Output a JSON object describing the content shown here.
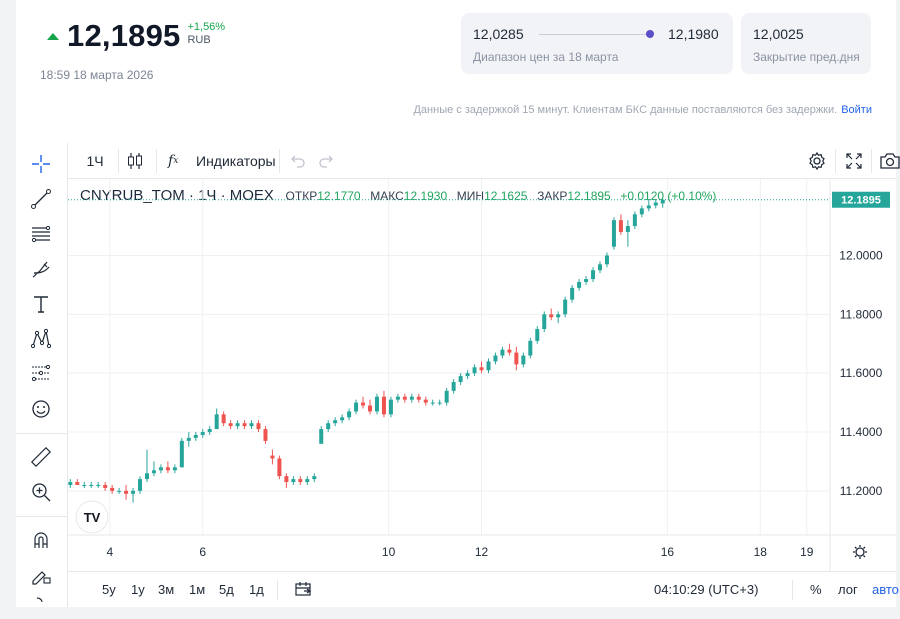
{
  "quote": {
    "price": "12,1895",
    "change_pct": "+1,56%",
    "currency": "RUB",
    "timestamp": "18:59 18 марта 2026"
  },
  "range_card": {
    "low": "12,0285",
    "high": "12,1980",
    "label": "Диапазон цен за 18 марта"
  },
  "prev_close_card": {
    "value": "12,0025",
    "label": "Закрытие пред.дня"
  },
  "delay_notice": {
    "text": "Данные с задержкой 15 минут. Клиентам БКС данные поставляются без задержки.",
    "login_link": "Войти"
  },
  "toolbar": {
    "interval": "1Ч",
    "indicators_label": "Индикаторы"
  },
  "legend": {
    "symbol": "CNYRUB_TOM · 1Ч · MOEX",
    "open_label": "ОТКР",
    "open": "12.1770",
    "high_label": "МАКС",
    "high": "12.1930",
    "low_label": "МИН",
    "low": "12.1625",
    "close_label": "ЗАКР",
    "close": "12.1895",
    "change": "+0.0120 (+0.10%)"
  },
  "bottom": {
    "ranges": [
      "5у",
      "1у",
      "3м",
      "1м",
      "5д",
      "1д"
    ],
    "time": "04:10:29 (UTC+3)",
    "percent": "%",
    "log": "лог",
    "auto": "авто"
  },
  "chart_data": {
    "type": "candlestick",
    "last_price_label": "12.1895",
    "y_ticks": [
      "12.0000",
      "11.8000",
      "11.6000",
      "11.4000",
      "11.2000"
    ],
    "y_tick_values": [
      12.0,
      11.8,
      11.6,
      11.4,
      11.2
    ],
    "ylim": [
      11.05,
      12.26
    ],
    "x_ticks": [
      "4",
      "6",
      "10",
      "12",
      "16",
      "18",
      "19"
    ],
    "x_tick_values": [
      4,
      6,
      10,
      12,
      16,
      18,
      19
    ],
    "xlim": [
      3.1,
      19.5
    ],
    "colors": {
      "up": "#26a69a",
      "down": "#ef5350",
      "last_price": "#26a69a"
    },
    "candles": [
      {
        "t": 3.15,
        "o": 11.22,
        "h": 11.24,
        "l": 11.21,
        "c": 11.23
      },
      {
        "t": 3.3,
        "o": 11.23,
        "h": 11.24,
        "l": 11.22,
        "c": 11.22
      },
      {
        "t": 3.45,
        "o": 11.22,
        "h": 11.23,
        "l": 11.21,
        "c": 11.22
      },
      {
        "t": 3.6,
        "o": 11.22,
        "h": 11.23,
        "l": 11.21,
        "c": 11.22
      },
      {
        "t": 3.75,
        "o": 11.22,
        "h": 11.23,
        "l": 11.21,
        "c": 11.22
      },
      {
        "t": 3.9,
        "o": 11.22,
        "h": 11.23,
        "l": 11.2,
        "c": 11.21
      },
      {
        "t": 4.05,
        "o": 11.21,
        "h": 11.22,
        "l": 11.19,
        "c": 11.2
      },
      {
        "t": 4.2,
        "o": 11.2,
        "h": 11.21,
        "l": 11.19,
        "c": 11.2
      },
      {
        "t": 4.35,
        "o": 11.2,
        "h": 11.22,
        "l": 11.17,
        "c": 11.19
      },
      {
        "t": 4.5,
        "o": 11.19,
        "h": 11.21,
        "l": 11.16,
        "c": 11.2
      },
      {
        "t": 4.65,
        "o": 11.2,
        "h": 11.25,
        "l": 11.19,
        "c": 11.24
      },
      {
        "t": 4.8,
        "o": 11.24,
        "h": 11.34,
        "l": 11.23,
        "c": 11.26
      },
      {
        "t": 4.95,
        "o": 11.26,
        "h": 11.3,
        "l": 11.25,
        "c": 11.27
      },
      {
        "t": 5.1,
        "o": 11.27,
        "h": 11.29,
        "l": 11.26,
        "c": 11.28
      },
      {
        "t": 5.25,
        "o": 11.28,
        "h": 11.3,
        "l": 11.26,
        "c": 11.27
      },
      {
        "t": 5.4,
        "o": 11.27,
        "h": 11.29,
        "l": 11.26,
        "c": 11.28
      },
      {
        "t": 5.55,
        "o": 11.28,
        "h": 11.38,
        "l": 11.28,
        "c": 11.37
      },
      {
        "t": 5.7,
        "o": 11.37,
        "h": 11.4,
        "l": 11.35,
        "c": 11.38
      },
      {
        "t": 5.85,
        "o": 11.38,
        "h": 11.4,
        "l": 11.37,
        "c": 11.39
      },
      {
        "t": 6.0,
        "o": 11.39,
        "h": 11.41,
        "l": 11.38,
        "c": 11.4
      },
      {
        "t": 6.15,
        "o": 11.4,
        "h": 11.42,
        "l": 11.39,
        "c": 11.41
      },
      {
        "t": 6.3,
        "o": 11.41,
        "h": 11.48,
        "l": 11.41,
        "c": 11.46
      },
      {
        "t": 6.45,
        "o": 11.46,
        "h": 11.47,
        "l": 11.42,
        "c": 11.43
      },
      {
        "t": 6.6,
        "o": 11.43,
        "h": 11.44,
        "l": 11.41,
        "c": 11.42
      },
      {
        "t": 6.75,
        "o": 11.42,
        "h": 11.44,
        "l": 11.41,
        "c": 11.43
      },
      {
        "t": 6.9,
        "o": 11.43,
        "h": 11.44,
        "l": 11.41,
        "c": 11.42
      },
      {
        "t": 7.05,
        "o": 11.42,
        "h": 11.44,
        "l": 11.41,
        "c": 11.43
      },
      {
        "t": 7.2,
        "o": 11.43,
        "h": 11.44,
        "l": 11.4,
        "c": 11.41
      },
      {
        "t": 7.35,
        "o": 11.41,
        "h": 11.42,
        "l": 11.36,
        "c": 11.37
      },
      {
        "t": 7.5,
        "o": 11.32,
        "h": 11.34,
        "l": 11.29,
        "c": 11.31
      },
      {
        "t": 7.65,
        "o": 11.31,
        "h": 11.32,
        "l": 11.24,
        "c": 11.25
      },
      {
        "t": 7.8,
        "o": 11.25,
        "h": 11.26,
        "l": 11.21,
        "c": 11.23
      },
      {
        "t": 7.95,
        "o": 11.23,
        "h": 11.25,
        "l": 11.22,
        "c": 11.24
      },
      {
        "t": 8.1,
        "o": 11.24,
        "h": 11.25,
        "l": 11.22,
        "c": 11.23
      },
      {
        "t": 8.25,
        "o": 11.23,
        "h": 11.25,
        "l": 11.22,
        "c": 11.24
      },
      {
        "t": 8.4,
        "o": 11.24,
        "h": 11.26,
        "l": 11.23,
        "c": 11.25
      },
      {
        "t": 8.55,
        "o": 11.36,
        "h": 11.42,
        "l": 11.36,
        "c": 11.41
      },
      {
        "t": 8.7,
        "o": 11.41,
        "h": 11.44,
        "l": 11.4,
        "c": 11.43
      },
      {
        "t": 8.85,
        "o": 11.43,
        "h": 11.45,
        "l": 11.42,
        "c": 11.44
      },
      {
        "t": 9.0,
        "o": 11.44,
        "h": 11.46,
        "l": 11.43,
        "c": 11.45
      },
      {
        "t": 9.15,
        "o": 11.45,
        "h": 11.48,
        "l": 11.44,
        "c": 11.47
      },
      {
        "t": 9.3,
        "o": 11.47,
        "h": 11.51,
        "l": 11.46,
        "c": 11.5
      },
      {
        "t": 9.45,
        "o": 11.5,
        "h": 11.52,
        "l": 11.48,
        "c": 11.49
      },
      {
        "t": 9.6,
        "o": 11.49,
        "h": 11.51,
        "l": 11.46,
        "c": 11.47
      },
      {
        "t": 9.75,
        "o": 11.47,
        "h": 11.53,
        "l": 11.46,
        "c": 11.52
      },
      {
        "t": 9.9,
        "o": 11.52,
        "h": 11.54,
        "l": 11.45,
        "c": 11.46
      },
      {
        "t": 10.05,
        "o": 11.46,
        "h": 11.52,
        "l": 11.45,
        "c": 11.51
      },
      {
        "t": 10.2,
        "o": 11.51,
        "h": 11.53,
        "l": 11.5,
        "c": 11.52
      },
      {
        "t": 10.35,
        "o": 11.52,
        "h": 11.53,
        "l": 11.5,
        "c": 11.51
      },
      {
        "t": 10.5,
        "o": 11.51,
        "h": 11.53,
        "l": 11.5,
        "c": 11.52
      },
      {
        "t": 10.65,
        "o": 11.52,
        "h": 11.53,
        "l": 11.5,
        "c": 11.51
      },
      {
        "t": 10.8,
        "o": 11.51,
        "h": 11.52,
        "l": 11.49,
        "c": 11.5
      },
      {
        "t": 10.95,
        "o": 11.5,
        "h": 11.51,
        "l": 11.49,
        "c": 11.5
      },
      {
        "t": 11.1,
        "o": 11.5,
        "h": 11.51,
        "l": 11.49,
        "c": 11.5
      },
      {
        "t": 11.25,
        "o": 11.5,
        "h": 11.55,
        "l": 11.49,
        "c": 11.54
      },
      {
        "t": 11.4,
        "o": 11.54,
        "h": 11.58,
        "l": 11.53,
        "c": 11.57
      },
      {
        "t": 11.55,
        "o": 11.57,
        "h": 11.6,
        "l": 11.56,
        "c": 11.59
      },
      {
        "t": 11.7,
        "o": 11.59,
        "h": 11.61,
        "l": 11.58,
        "c": 11.6
      },
      {
        "t": 11.85,
        "o": 11.6,
        "h": 11.63,
        "l": 11.59,
        "c": 11.62
      },
      {
        "t": 12.0,
        "o": 11.62,
        "h": 11.64,
        "l": 11.6,
        "c": 11.61
      },
      {
        "t": 12.15,
        "o": 11.61,
        "h": 11.65,
        "l": 11.6,
        "c": 11.64
      },
      {
        "t": 12.3,
        "o": 11.64,
        "h": 11.67,
        "l": 11.63,
        "c": 11.66
      },
      {
        "t": 12.45,
        "o": 11.66,
        "h": 11.69,
        "l": 11.65,
        "c": 11.68
      },
      {
        "t": 12.6,
        "o": 11.68,
        "h": 11.7,
        "l": 11.66,
        "c": 11.67
      },
      {
        "t": 12.75,
        "o": 11.67,
        "h": 11.69,
        "l": 11.61,
        "c": 11.63
      },
      {
        "t": 12.9,
        "o": 11.63,
        "h": 11.67,
        "l": 11.62,
        "c": 11.66
      },
      {
        "t": 13.05,
        "o": 11.66,
        "h": 11.72,
        "l": 11.65,
        "c": 11.71
      },
      {
        "t": 13.2,
        "o": 11.71,
        "h": 11.76,
        "l": 11.7,
        "c": 11.75
      },
      {
        "t": 13.35,
        "o": 11.75,
        "h": 11.81,
        "l": 11.74,
        "c": 11.8
      },
      {
        "t": 13.5,
        "o": 11.8,
        "h": 11.82,
        "l": 11.78,
        "c": 11.79
      },
      {
        "t": 13.65,
        "o": 11.79,
        "h": 11.81,
        "l": 11.77,
        "c": 11.8
      },
      {
        "t": 13.8,
        "o": 11.8,
        "h": 11.86,
        "l": 11.79,
        "c": 11.85
      },
      {
        "t": 13.95,
        "o": 11.85,
        "h": 11.9,
        "l": 11.84,
        "c": 11.89
      },
      {
        "t": 14.1,
        "o": 11.89,
        "h": 11.92,
        "l": 11.88,
        "c": 11.91
      },
      {
        "t": 14.25,
        "o": 11.91,
        "h": 11.93,
        "l": 11.9,
        "c": 11.92
      },
      {
        "t": 14.4,
        "o": 11.92,
        "h": 11.96,
        "l": 11.91,
        "c": 11.95
      },
      {
        "t": 14.55,
        "o": 11.95,
        "h": 11.98,
        "l": 11.94,
        "c": 11.97
      },
      {
        "t": 14.7,
        "o": 11.97,
        "h": 12.01,
        "l": 11.96,
        "c": 12.0
      },
      {
        "t": 14.85,
        "o": 12.03,
        "h": 12.13,
        "l": 12.02,
        "c": 12.12
      },
      {
        "t": 15.0,
        "o": 12.12,
        "h": 12.14,
        "l": 12.07,
        "c": 12.08
      },
      {
        "t": 15.15,
        "o": 12.08,
        "h": 12.12,
        "l": 12.03,
        "c": 12.1
      },
      {
        "t": 15.3,
        "o": 12.1,
        "h": 12.15,
        "l": 12.09,
        "c": 12.14
      },
      {
        "t": 15.45,
        "o": 12.14,
        "h": 12.17,
        "l": 12.13,
        "c": 12.16
      },
      {
        "t": 15.6,
        "o": 12.16,
        "h": 12.19,
        "l": 12.15,
        "c": 12.17
      },
      {
        "t": 15.75,
        "o": 12.17,
        "h": 12.19,
        "l": 12.16,
        "c": 12.18
      },
      {
        "t": 15.9,
        "o": 12.177,
        "h": 12.193,
        "l": 12.1625,
        "c": 12.1895
      }
    ]
  }
}
